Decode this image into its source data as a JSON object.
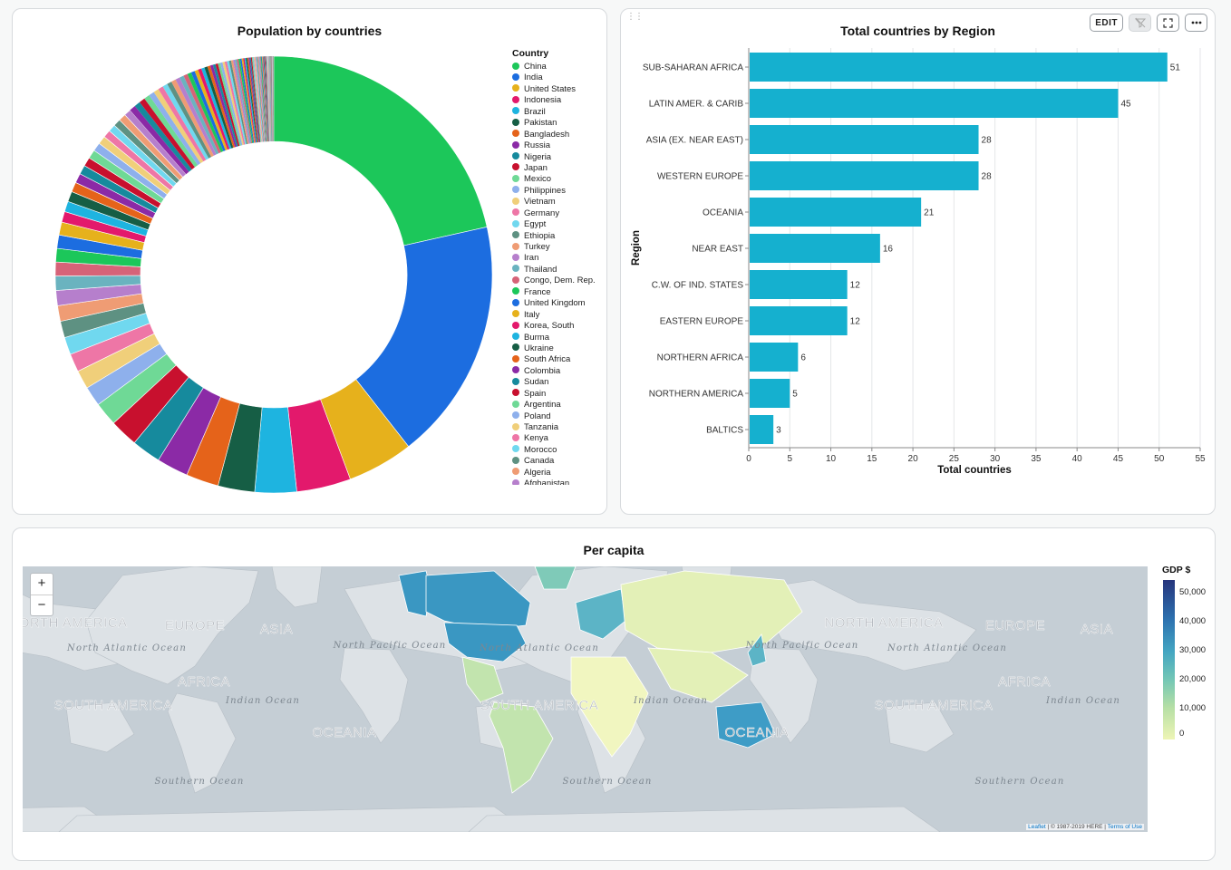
{
  "population_chart": {
    "title": "Population by countries",
    "legend_title": "Country",
    "chart_data": {
      "type": "pie",
      "title": "Population by countries",
      "categories": [
        "China",
        "India",
        "United States",
        "Indonesia",
        "Brazil",
        "Pakistan",
        "Bangladesh",
        "Russia",
        "Nigeria",
        "Japan",
        "Mexico",
        "Philippines",
        "Vietnam",
        "Germany",
        "Egypt",
        "Ethiopia",
        "Turkey",
        "Iran",
        "Thailand",
        "Congo, Dem. Rep.",
        "France",
        "United Kingdom",
        "Italy",
        "Korea, South",
        "Burma",
        "Ukraine",
        "South Africa",
        "Colombia",
        "Sudan",
        "Spain",
        "Argentina",
        "Poland",
        "Tanzania",
        "Kenya",
        "Morocco",
        "Canada",
        "Algeria",
        "Afghanistan"
      ],
      "values": [
        1313.97,
        1095.35,
        298.44,
        245.45,
        188.08,
        165.8,
        147.37,
        142.89,
        131.86,
        127.46,
        107.45,
        89.47,
        84.4,
        82.42,
        78.89,
        74.78,
        70.41,
        68.69,
        64.63,
        62.66,
        60.88,
        60.61,
        58.13,
        48.85,
        47.38,
        46.71,
        44.19,
        43.59,
        41.24,
        40.4,
        39.92,
        38.54,
        37.45,
        34.71,
        33.24,
        33.1,
        32.93,
        31.06
      ],
      "other_values": [
        28.3,
        27.02,
        26.78,
        26.02,
        25.03,
        24.07,
        23.02,
        22.41,
        21.45,
        20.86,
        20.26,
        19.34,
        18.6,
        17.89,
        17.17,
        16.14,
        15.29,
        14.76,
        13.9,
        13.09,
        12.35,
        11.74,
        11.19,
        10.76,
        10.44,
        10.24,
        9.98,
        9.65,
        9.23,
        8.87,
        8.64,
        8.18,
        7.71,
        7.38,
        7.07,
        6.75,
        6.45,
        6.15,
        5.9,
        5.64,
        5.38,
        5.14,
        4.92,
        4.71,
        4.52,
        4.33,
        4.15,
        3.98,
        3.81,
        3.65,
        3.49,
        3.33,
        3.18,
        3.04,
        2.91,
        2.78,
        2.66,
        2.54,
        2.43,
        2.32,
        2.21,
        2.11,
        2.01,
        1.92,
        1.83,
        1.74,
        1.65,
        1.57,
        1.49,
        1.41,
        1.34,
        1.27,
        1.2,
        1.13,
        1.07,
        1.01,
        0.95,
        0.9,
        0.85,
        0.8,
        0.75,
        0.71,
        0.67,
        0.63,
        0.59,
        0.55,
        0.52,
        0.49,
        0.46,
        0.43,
        0.4,
        0.37,
        0.34,
        0.32,
        0.3,
        0.28,
        0.26,
        0.24,
        0.22,
        0.2,
        0.18,
        0.16,
        0.15,
        0.14,
        0.13,
        0.12,
        0.11,
        0.1,
        0.09,
        0.08,
        0.07,
        0.07,
        0.06,
        0.06,
        0.05,
        0.05,
        0.04,
        0.04,
        0.03,
        0.03,
        0.03,
        0.02,
        0.02,
        0.02,
        0.02,
        0.01,
        0.01,
        0.01,
        0.01,
        0.01,
        0.01,
        0.01,
        0.01,
        0.01,
        0.01,
        0.01,
        0.01,
        0.01,
        0.01,
        0.01,
        0.01,
        0.01,
        0.01,
        0.01,
        0.01,
        0.01,
        0.01,
        0.01,
        0.01,
        0.01,
        0.01,
        0.01,
        0.01,
        0.01,
        0.01,
        0.01,
        0.01,
        0.01,
        0.01,
        0.01,
        0.01,
        0.01,
        0.01,
        0.01,
        0.01,
        0.01,
        0.01,
        0.01,
        0.01,
        0.01,
        0.01,
        0.01,
        0.01,
        0.01,
        0.01,
        0.01,
        0.01,
        0.01,
        0.01,
        0.01,
        0.01,
        0.01,
        0.01,
        0.01
      ],
      "colors": [
        "#1cc75a",
        "#1c6de0",
        "#e6b11c",
        "#e3196c",
        "#1eb4e0",
        "#165e45",
        "#e5631a",
        "#8b2aa6",
        "#168a9d",
        "#c8102e",
        "#6fd996",
        "#8eb0ec",
        "#f0cf7a",
        "#ee76a6",
        "#70d8ef",
        "#5e9182",
        "#ef9c74",
        "#b67fcc",
        "#6ab3bf",
        "#d66378"
      ]
    }
  },
  "region_chart": {
    "title": "Total countries by Region",
    "toolbar": {
      "edit_label": "EDIT"
    },
    "chart_data": {
      "type": "bar",
      "orientation": "horizontal",
      "categories": [
        "SUB-SAHARAN AFRICA",
        "LATIN AMER. & CARIB",
        "ASIA (EX. NEAR EAST)",
        "WESTERN EUROPE",
        "OCEANIA",
        "NEAR EAST",
        "C.W. OF IND. STATES",
        "EASTERN EUROPE",
        "NORTHERN AFRICA",
        "NORTHERN AMERICA",
        "BALTICS"
      ],
      "values": [
        51,
        45,
        28,
        28,
        21,
        16,
        12,
        12,
        6,
        5,
        3
      ],
      "xlabel": "Total countries",
      "ylabel": "Region",
      "xlim": [
        0,
        55
      ],
      "xticks": [
        0,
        5,
        10,
        15,
        20,
        25,
        30,
        35,
        40,
        45,
        50,
        55
      ],
      "bar_color": "#15b0cf",
      "grid": true
    }
  },
  "map": {
    "title": "Per capita",
    "zoom_in": "+",
    "zoom_out": "−",
    "attribution_leaflet": "Leaflet",
    "attribution_here": "| © 1987-2019 HERE |",
    "attribution_terms": "Terms of Use",
    "ocean_color": "#c5ced5",
    "land_color": "#dde2e6",
    "labels": [
      {
        "text": "NORTH AMERICA",
        "kind": "continent"
      },
      {
        "text": "EUROPE",
        "kind": "continent"
      },
      {
        "text": "ASIA",
        "kind": "continent"
      },
      {
        "text": "NORTH AMERICA",
        "kind": "continent"
      },
      {
        "text": "EUROPE",
        "kind": "continent"
      },
      {
        "text": "ASIA",
        "kind": "continent"
      },
      {
        "text": "North Atlantic Ocean",
        "kind": "ocean"
      },
      {
        "text": "North Pacific Ocean",
        "kind": "ocean"
      },
      {
        "text": "North Atlantic Ocean",
        "kind": "ocean"
      },
      {
        "text": "North Pacific Ocean",
        "kind": "ocean"
      },
      {
        "text": "North Atlantic Ocean",
        "kind": "ocean"
      },
      {
        "text": "AFRICA",
        "kind": "continent"
      },
      {
        "text": "AFRICA",
        "kind": "continent"
      },
      {
        "text": "Indian Ocean",
        "kind": "ocean"
      },
      {
        "text": "Indian Ocean",
        "kind": "ocean"
      },
      {
        "text": "Indian Ocean",
        "kind": "ocean"
      },
      {
        "text": "SOUTH AMERICA",
        "kind": "continent"
      },
      {
        "text": "SOUTH AMERICA",
        "kind": "continent"
      },
      {
        "text": "SOUTH AMERICA",
        "kind": "continent"
      },
      {
        "text": "OCEANIA",
        "kind": "continent"
      },
      {
        "text": "OCEANIA",
        "kind": "continent"
      },
      {
        "text": "Southern Ocean",
        "kind": "ocean"
      },
      {
        "text": "Southern Ocean",
        "kind": "ocean"
      },
      {
        "text": "Southern Ocean",
        "kind": "ocean"
      }
    ],
    "legend": {
      "title": "GDP $",
      "ticks": [
        "50,000",
        "40,000",
        "30,000",
        "20,000",
        "10,000",
        "0"
      ],
      "colors": [
        "#26357d",
        "#2d72b0",
        "#44a6c2",
        "#72c6b6",
        "#b6dfa5",
        "#eef5b5"
      ]
    },
    "choropleth": {
      "north_america": "#3a97c2",
      "europe": "#5cb4c6",
      "russia_asia": "#e3f0b7",
      "africa": "#f1f6c0",
      "south_america": "#c2e4ae",
      "australia": "#3e9cc6"
    }
  }
}
